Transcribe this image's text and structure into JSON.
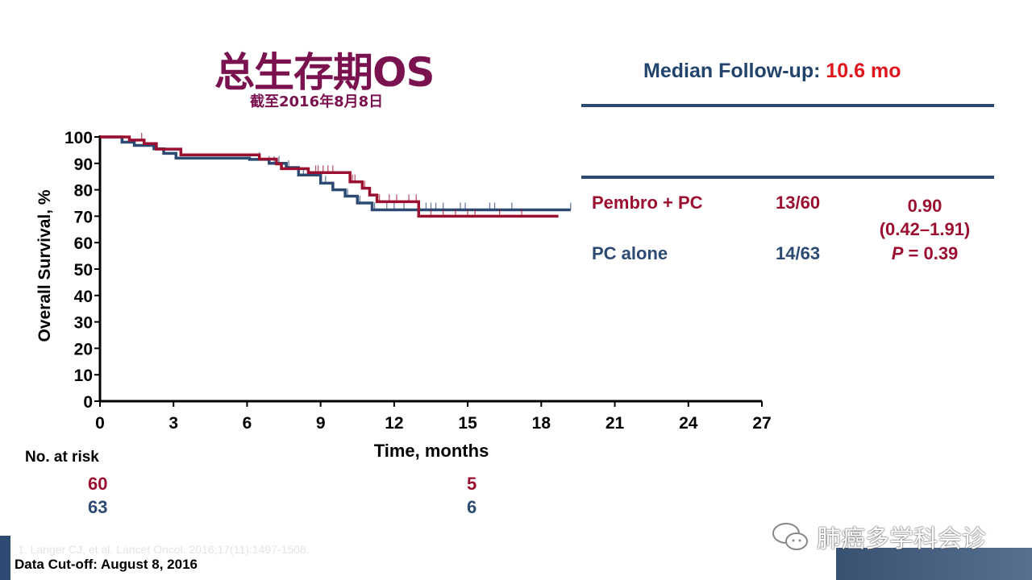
{
  "title": "总生存期OS",
  "subtitle": "截至2016年8月8日",
  "median": {
    "label": "Median Follow-up:",
    "value": "10.6 mo"
  },
  "table": {
    "rows": [
      {
        "arm": "Pembro + PC",
        "events": "13/60"
      },
      {
        "arm": "PC alone",
        "events": "14/63"
      }
    ],
    "hr": "0.90",
    "ci": "(0.42–1.91)",
    "p_label": "P",
    "p_value": "= 0.39"
  },
  "risk": {
    "label": "No. at risk",
    "pembro": [
      "60",
      "5"
    ],
    "pc": [
      "63",
      "6"
    ]
  },
  "citation": "1. Langer CJ, et al. Lancet Oncol. 2016;17(11):1497-1508.",
  "cutoff": "Data Cut-off: August 8, 2016",
  "watermark": "肺癌多学科会诊",
  "colors": {
    "pembro": "#9b1030",
    "pc": "#2c4a72"
  },
  "chart_data": {
    "type": "line",
    "subtype": "kaplan-meier step",
    "xlabel": "Time, months",
    "ylabel": "Overall Survival, %",
    "xlim": [
      0,
      27
    ],
    "ylim": [
      0,
      100
    ],
    "xticks": [
      "0",
      "3",
      "6",
      "9",
      "12",
      "15",
      "18",
      "21",
      "24",
      "27"
    ],
    "yticks": [
      "0",
      "10",
      "20",
      "30",
      "40",
      "50",
      "60",
      "70",
      "80",
      "90",
      "100"
    ],
    "series": [
      {
        "name": "Pembro + PC",
        "points": [
          [
            0,
            100
          ],
          [
            1.2,
            98.8
          ],
          [
            1.8,
            97.5
          ],
          [
            2.3,
            95.4
          ],
          [
            3.3,
            93.2
          ],
          [
            6.5,
            91.6
          ],
          [
            7.2,
            89.8
          ],
          [
            7.4,
            88
          ],
          [
            8.5,
            86.5
          ],
          [
            10.2,
            83
          ],
          [
            10.7,
            80.6
          ],
          [
            11.0,
            78
          ],
          [
            11.3,
            75.5
          ],
          [
            13.0,
            70
          ],
          [
            18.7,
            70
          ]
        ],
        "censored": [
          1.7,
          8.8,
          8.9,
          9.1,
          9.3,
          9.5,
          10.3,
          10.4,
          10.8,
          11.4,
          11.8,
          12.1,
          12.6,
          12.9,
          13.5,
          14.0,
          14.5,
          15.0,
          15.3,
          16.3,
          17.2
        ]
      },
      {
        "name": "PC alone",
        "points": [
          [
            0,
            100
          ],
          [
            0.9,
            98
          ],
          [
            1.4,
            96.8
          ],
          [
            2.2,
            95.5
          ],
          [
            2.6,
            93.8
          ],
          [
            3.1,
            92
          ],
          [
            6.1,
            91.5
          ],
          [
            6.9,
            90
          ],
          [
            7.6,
            88.4
          ],
          [
            8.1,
            85.6
          ],
          [
            9.0,
            82.5
          ],
          [
            9.5,
            80
          ],
          [
            10.0,
            77.6
          ],
          [
            10.5,
            75
          ],
          [
            11.1,
            72.4
          ],
          [
            19.2,
            72.4
          ]
        ],
        "censored": [
          6.5,
          6.9,
          7.1,
          7.3,
          7.7,
          8.3,
          9.2,
          10.1,
          10.6,
          11.2,
          11.7,
          12.0,
          12.4,
          13.3,
          13.5,
          13.7,
          14.0,
          14.7,
          14.9,
          15.9,
          16.1,
          16.8,
          19.2
        ]
      }
    ]
  }
}
